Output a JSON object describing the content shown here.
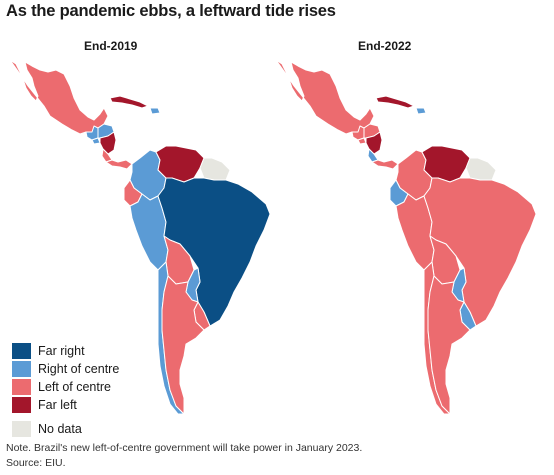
{
  "title": "As the pandemic ebbs, a leftward tide rises",
  "maps": {
    "left_label": "End-2019",
    "right_label": "End-2022"
  },
  "colors": {
    "far_right": "#0b4f85",
    "right_of_centre": "#5b9bd5",
    "left_of_centre": "#ec6b6f",
    "far_left": "#a3162b",
    "no_data": "#e6e6e0",
    "border": "#ffffff"
  },
  "legend": [
    {
      "key": "far_right",
      "label": "Far right"
    },
    {
      "key": "right_of_centre",
      "label": "Right of centre"
    },
    {
      "key": "left_of_centre",
      "label": "Left of centre"
    },
    {
      "key": "far_left",
      "label": "Far left"
    },
    {
      "key": "no_data",
      "label": "No data"
    }
  ],
  "map_2019": {
    "mexico": "left_of_centre",
    "guatemala": "right_of_centre",
    "honduras": "right_of_centre",
    "el_salvador": "right_of_centre",
    "nicaragua": "far_left",
    "costa_rica": "left_of_centre",
    "panama": "left_of_centre",
    "cuba": "far_left",
    "caribbean": "right_of_centre",
    "colombia": "right_of_centre",
    "venezuela": "far_left",
    "guianas": "no_data",
    "ecuador": "left_of_centre",
    "peru": "right_of_centre",
    "brazil": "far_right",
    "bolivia": "left_of_centre",
    "paraguay": "right_of_centre",
    "chile": "right_of_centre",
    "argentina": "left_of_centre",
    "uruguay": "left_of_centre"
  },
  "map_2022": {
    "mexico": "left_of_centre",
    "guatemala": "left_of_centre",
    "honduras": "left_of_centre",
    "el_salvador": "left_of_centre",
    "nicaragua": "far_left",
    "costa_rica": "right_of_centre",
    "panama": "left_of_centre",
    "cuba": "far_left",
    "caribbean": "right_of_centre",
    "colombia": "left_of_centre",
    "venezuela": "far_left",
    "guianas": "no_data",
    "ecuador": "right_of_centre",
    "peru": "left_of_centre",
    "brazil": "left_of_centre",
    "bolivia": "left_of_centre",
    "paraguay": "right_of_centre",
    "chile": "left_of_centre",
    "argentina": "left_of_centre",
    "uruguay": "right_of_centre"
  },
  "note": {
    "line1": "Note. Brazil's new left-of-centre government will take power in January 2023.",
    "line2": "Source: EIU."
  }
}
